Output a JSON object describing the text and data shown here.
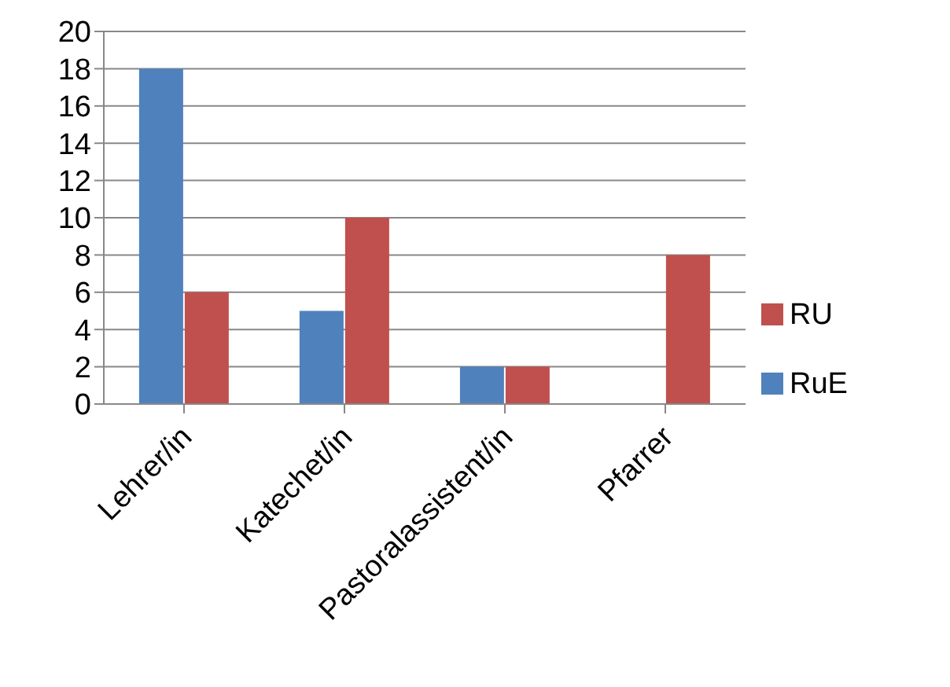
{
  "chart_data": {
    "type": "bar",
    "categories": [
      "Lehrer/in",
      "Katechet/in",
      "Pastoralassistent/in",
      "Pfarrer"
    ],
    "series": [
      {
        "name": "RuE",
        "color": "#4f81bd",
        "values": [
          18,
          5,
          2,
          0
        ]
      },
      {
        "name": "RU",
        "color": "#c0504d",
        "values": [
          6,
          10,
          2,
          8
        ]
      }
    ],
    "ylim": [
      0,
      20
    ],
    "yticks": [
      0,
      2,
      4,
      6,
      8,
      10,
      12,
      14,
      16,
      18,
      20
    ],
    "grid": "y",
    "legend": "right"
  }
}
